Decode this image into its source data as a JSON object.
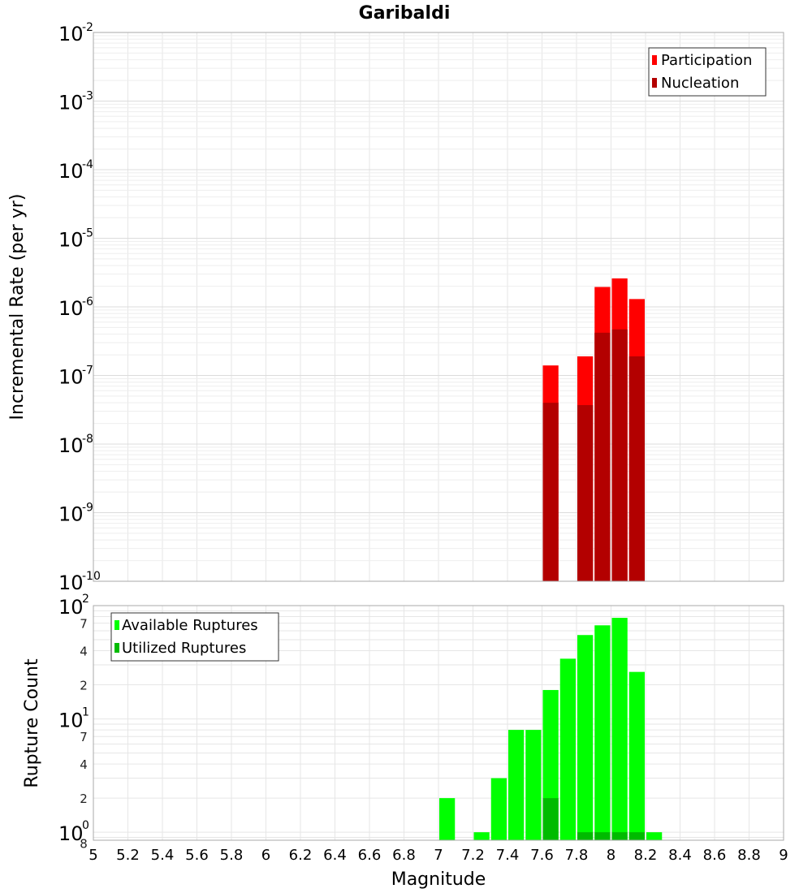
{
  "colors": {
    "participation": "#ff0000",
    "nucleation": "#b30000",
    "available": "#00ff00",
    "utilized": "#00bb00",
    "grid": "#e6e6e6",
    "frame": "#aaaaaa"
  },
  "chart_data": [
    {
      "type": "bar",
      "title": "Garibaldi",
      "xlabel": "",
      "ylabel": "Incremental Rate (per yr)",
      "yscale": "log",
      "ylim": [
        1e-10,
        0.01
      ],
      "xlim": [
        5,
        9
      ],
      "grid": true,
      "legend_position": "top-right",
      "y_tick_exponents": [
        -2,
        -3,
        -4,
        -5,
        -6,
        -7,
        -8,
        -9,
        -10
      ],
      "bar_width": 0.1,
      "x": [
        7.65,
        7.85,
        7.95,
        8.05,
        8.15
      ],
      "series": [
        {
          "name": "Participation",
          "values": [
            1.4e-07,
            1.9e-07,
            1.95e-06,
            2.6e-06,
            1.3e-06
          ]
        },
        {
          "name": "Nucleation",
          "values": [
            4e-08,
            3.7e-08,
            4.2e-07,
            4.7e-07,
            1.9e-07
          ]
        }
      ]
    },
    {
      "type": "bar",
      "title": "",
      "xlabel": "Magnitude",
      "ylabel": "Rupture Count",
      "yscale": "log",
      "ylim": [
        0.85,
        100
      ],
      "xlim": [
        5,
        9
      ],
      "grid": true,
      "legend_position": "top-left",
      "x_ticks": [
        "5",
        "5.2",
        "5.4",
        "5.6",
        "5.8",
        "6",
        "6.2",
        "6.4",
        "6.6",
        "6.8",
        "7",
        "7.2",
        "7.4",
        "7.6",
        "7.8",
        "8",
        "8.2",
        "8.4",
        "8.6",
        "8.8",
        "9"
      ],
      "y_major_exponents": [
        2,
        1,
        0
      ],
      "y_minor_labels": [
        "7",
        "4",
        "2",
        "7",
        "4",
        "2",
        "8"
      ],
      "y_minor_values": [
        70,
        40,
        20,
        7,
        4,
        2,
        0.8
      ],
      "bar_width": 0.1,
      "x": [
        7.05,
        7.25,
        7.35,
        7.45,
        7.55,
        7.65,
        7.75,
        7.85,
        7.95,
        8.05,
        8.15,
        8.25
      ],
      "series": [
        {
          "name": "Available Ruptures",
          "values": [
            2,
            1,
            3,
            8,
            8,
            18,
            34,
            55,
            67,
            78,
            26,
            1
          ]
        },
        {
          "name": "Utilized Ruptures",
          "values": [
            0,
            0,
            0,
            0,
            0,
            2,
            0,
            1,
            1,
            1,
            1,
            0
          ]
        }
      ]
    }
  ]
}
